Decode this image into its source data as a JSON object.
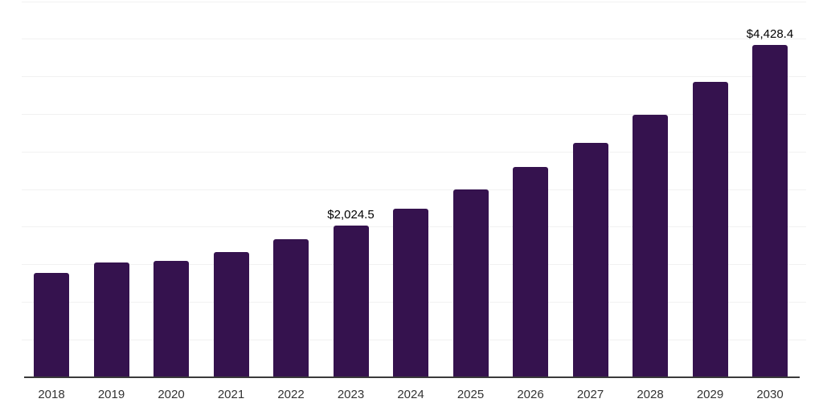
{
  "chart_data": {
    "type": "bar",
    "title": "",
    "xlabel": "",
    "ylabel": "",
    "categories": [
      "2018",
      "2019",
      "2020",
      "2021",
      "2022",
      "2023",
      "2024",
      "2025",
      "2026",
      "2027",
      "2028",
      "2029",
      "2030"
    ],
    "values": [
      1390,
      1530,
      1550,
      1665,
      1840,
      2024.5,
      2245,
      2500,
      2795,
      3115,
      3490,
      3935,
      4428.4
    ],
    "data_labels": {
      "2023": "$2,024.5",
      "2030": "$4,428.4"
    },
    "ylim": [
      0,
      5000
    ],
    "gridline_step": 500,
    "grid": "horizontal-only",
    "legend_position": "none",
    "y_axis_tick_labels_visible": false,
    "bar_color": "#35124E",
    "axis_color": "#3A3A3A",
    "gridline_color": "#F1F1F1",
    "value_label_color": "#000000",
    "tick_label_color": "#333333",
    "background_color": "#FFFFFF"
  }
}
